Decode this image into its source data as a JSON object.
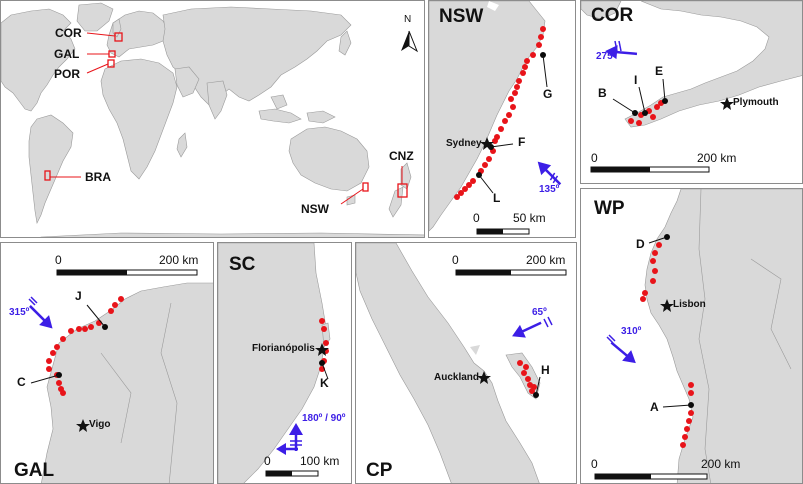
{
  "world": {
    "regions": [
      "COR",
      "GAL",
      "POR",
      "BRA",
      "NSW",
      "CNZ"
    ],
    "north_label": "N"
  },
  "nsw": {
    "title": "NSW",
    "sites": [
      "G",
      "F",
      "L"
    ],
    "city": "Sydney",
    "angle": "135º",
    "scale": {
      "start": "0",
      "end": "50 km"
    }
  },
  "cor": {
    "title": "COR",
    "sites": [
      "B",
      "I",
      "E"
    ],
    "city": "Plymouth",
    "angle": "275º",
    "scale": {
      "start": "0",
      "end": "200 km"
    }
  },
  "wp": {
    "title": "WP",
    "sites": [
      "D",
      "A"
    ],
    "city": "Lisbon",
    "angle": "310º",
    "scale": {
      "start": "0",
      "end": "200 km"
    }
  },
  "gal": {
    "title": "GAL",
    "sites": [
      "J",
      "C"
    ],
    "city": "Vigo",
    "angle": "315º",
    "scale": {
      "start": "0",
      "end": "200 km"
    }
  },
  "sc": {
    "title": "SC",
    "sites": [
      "K"
    ],
    "city": "Florianópolis",
    "angle": "180º / 90º",
    "scale": {
      "start": "0",
      "end": "100 km"
    }
  },
  "cp": {
    "title": "CP",
    "sites": [
      "H"
    ],
    "city": "Auckland",
    "angle": "65º",
    "scale": {
      "start": "0",
      "end": "200 km"
    }
  },
  "colors": {
    "land": "#d9d9d9",
    "sea": "#ffffff",
    "sample": "#e8141a",
    "site": "#0a0a0a",
    "arrow": "#3c1ee6",
    "box": "#e8141a"
  }
}
